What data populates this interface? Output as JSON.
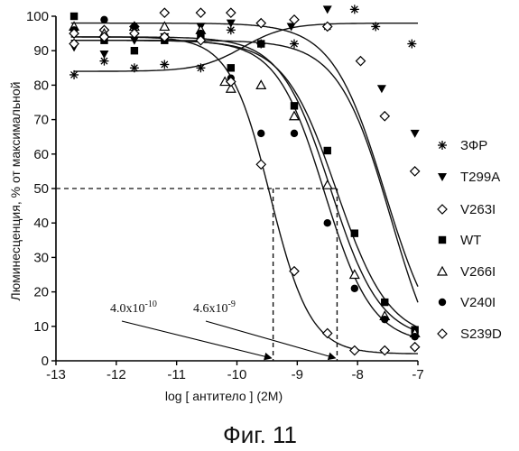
{
  "chart_data": {
    "type": "scatter",
    "xlabel": "log [ антитело ] (2M)",
    "ylabel": "Люминесценция, % от максимальной",
    "xlim": [
      -13,
      -7
    ],
    "ylim": [
      0,
      100
    ],
    "xticks": [
      "-13",
      "-12",
      "-11",
      "-10",
      "-9",
      "-8",
      "-7"
    ],
    "yticks": [
      "0",
      "10",
      "20",
      "30",
      "40",
      "50",
      "60",
      "70",
      "80",
      "90",
      "100"
    ],
    "legend_position": "right",
    "caption": "Фиг. 11",
    "annotations": [
      {
        "mantissa": "4.0x10",
        "exponent": "-10",
        "x": -9.4
      },
      {
        "mantissa": "4.6x10",
        "exponent": "-9",
        "x": -8.34
      }
    ],
    "reference_line_y": 50,
    "series": [
      {
        "name": "ЗФР",
        "marker": "asterisk",
        "curve": null,
        "points": [
          [
            -12.7,
            83
          ],
          [
            -12.2,
            87
          ],
          [
            -11.7,
            85
          ],
          [
            -11.2,
            86
          ],
          [
            -10.6,
            85
          ],
          [
            -10.1,
            96
          ],
          [
            -9.6,
            92
          ],
          [
            -9.05,
            92
          ],
          [
            -8.5,
            97
          ],
          [
            -8.05,
            102
          ],
          [
            -7.1,
            92
          ],
          [
            -7.7,
            97
          ]
        ]
      },
      {
        "name": "T299A",
        "marker": "triangle-down",
        "curve": {
          "top": 93,
          "bottom": -10,
          "ec50": -7.45,
          "hill": 1.0
        },
        "points": [
          [
            -12.7,
            91
          ],
          [
            -12.2,
            89
          ],
          [
            -11.7,
            93
          ],
          [
            -11.2,
            94
          ],
          [
            -10.6,
            97
          ],
          [
            -10.1,
            98
          ],
          [
            -9.1,
            97
          ],
          [
            -8.5,
            102
          ],
          [
            -7.6,
            79
          ],
          [
            -7.05,
            66
          ]
        ]
      },
      {
        "name": "V263I",
        "marker": "diamond-open",
        "curve": {
          "top": 98,
          "bottom": 0,
          "ec50": -7.55,
          "hill": 1.0
        },
        "points": [
          [
            -12.7,
            92
          ],
          [
            -12.2,
            96
          ],
          [
            -11.7,
            97
          ],
          [
            -11.2,
            101
          ],
          [
            -10.6,
            101
          ],
          [
            -10.1,
            101
          ],
          [
            -9.6,
            98
          ],
          [
            -9.05,
            99
          ],
          [
            -8.5,
            97
          ],
          [
            -7.95,
            87
          ],
          [
            -7.55,
            71
          ],
          [
            -7.05,
            55
          ]
        ]
      },
      {
        "name": "WT",
        "marker": "square-filled",
        "curve": {
          "top": 93,
          "bottom": 6,
          "ec50": -8.35,
          "hill": 1.0
        },
        "points": [
          [
            -12.7,
            100
          ],
          [
            -12.2,
            93
          ],
          [
            -11.7,
            90
          ],
          [
            -11.2,
            93
          ],
          [
            -10.6,
            94
          ],
          [
            -10.1,
            85
          ],
          [
            -9.6,
            92
          ],
          [
            -9.05,
            74
          ],
          [
            -8.5,
            61
          ],
          [
            -8.05,
            37
          ],
          [
            -7.55,
            17
          ],
          [
            -7.05,
            9
          ]
        ]
      },
      {
        "name": "V266I",
        "marker": "triangle-up-open",
        "curve": {
          "top": 94,
          "bottom": 6,
          "ec50": -8.45,
          "hill": 1.05
        },
        "points": [
          [
            -12.7,
            97
          ],
          [
            -12.2,
            95
          ],
          [
            -11.7,
            97
          ],
          [
            -11.2,
            97
          ],
          [
            -10.6,
            96
          ],
          [
            -10.2,
            81
          ],
          [
            -10.1,
            79
          ],
          [
            -9.6,
            80
          ],
          [
            -9.05,
            71
          ],
          [
            -8.5,
            51
          ],
          [
            -8.05,
            25
          ],
          [
            -7.55,
            13
          ],
          [
            -7.05,
            8
          ]
        ]
      },
      {
        "name": "V240I",
        "marker": "circle-filled",
        "curve": {
          "top": 93,
          "bottom": 5,
          "ec50": -8.55,
          "hill": 1.1
        },
        "points": [
          [
            -12.7,
            96
          ],
          [
            -12.2,
            99
          ],
          [
            -11.7,
            97
          ],
          [
            -11.2,
            94
          ],
          [
            -10.6,
            95
          ],
          [
            -10.1,
            82
          ],
          [
            -9.6,
            66
          ],
          [
            -9.05,
            66
          ],
          [
            -8.5,
            40
          ],
          [
            -8.05,
            21
          ],
          [
            -7.55,
            12
          ],
          [
            -7.05,
            7
          ]
        ]
      },
      {
        "name": "S239D",
        "marker": "diamond-open",
        "curve": {
          "top": 94,
          "bottom": 2,
          "ec50": -9.45,
          "hill": 1.3
        },
        "points": [
          [
            -12.7,
            95
          ],
          [
            -12.2,
            94
          ],
          [
            -11.7,
            95
          ],
          [
            -11.2,
            94
          ],
          [
            -10.6,
            93
          ],
          [
            -10.1,
            81
          ],
          [
            -9.6,
            57
          ],
          [
            -9.05,
            26
          ],
          [
            -8.5,
            8
          ],
          [
            -8.05,
            3
          ],
          [
            -7.55,
            3
          ],
          [
            -7.05,
            4
          ]
        ]
      }
    ]
  }
}
